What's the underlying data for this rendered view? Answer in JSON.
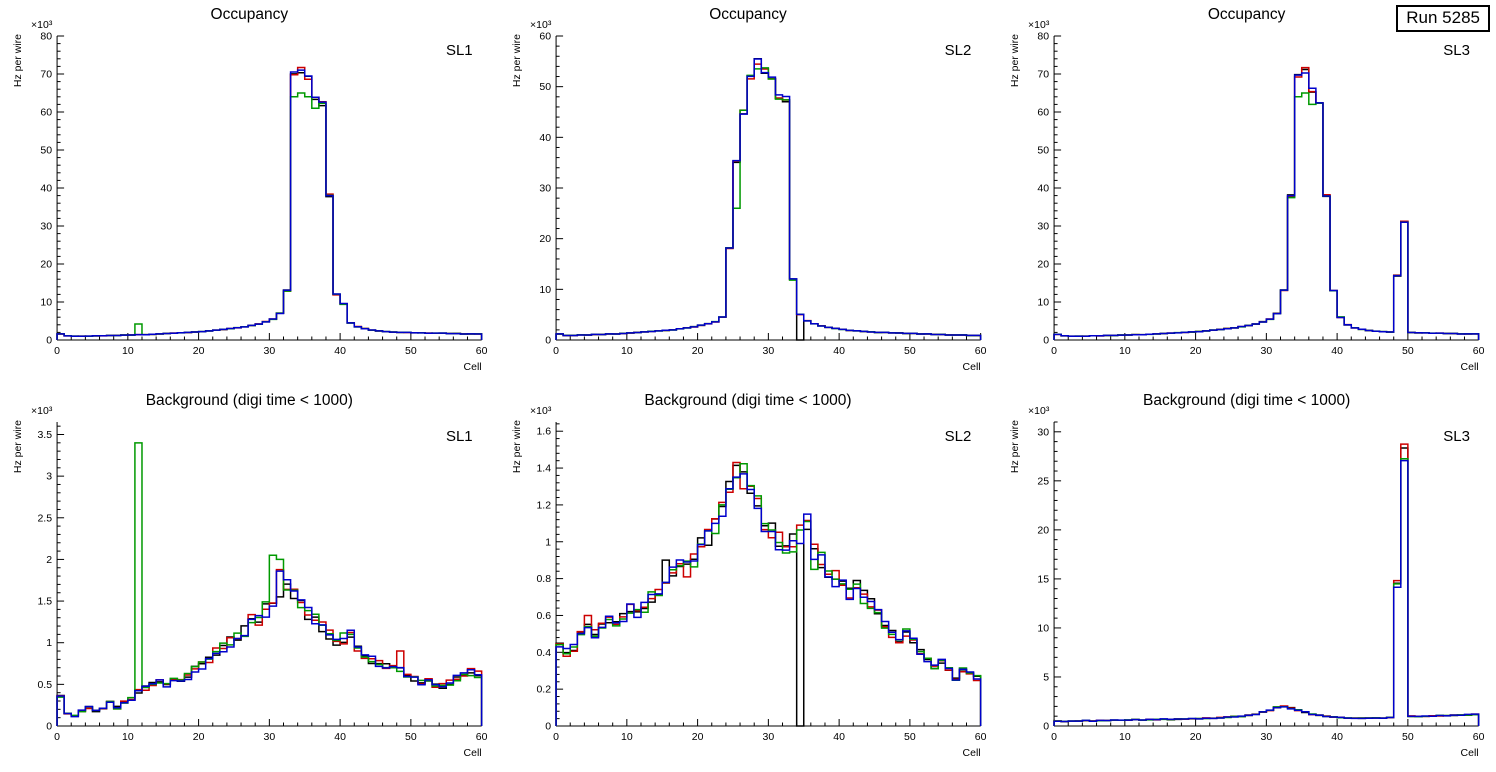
{
  "run_label": "Run 5285",
  "colors": {
    "frame": "#000000",
    "background": "#ffffff"
  },
  "chart_data": [
    {
      "type": "line",
      "style": "histogram-step",
      "title": "Occupancy",
      "pad_label": "SL1",
      "xlabel": "Cell",
      "ylabel": "Hz per wire",
      "y_exponent": "×10³",
      "xlim": [
        0,
        60
      ],
      "ylim": [
        0,
        80
      ],
      "xticks": [
        0,
        10,
        20,
        30,
        40,
        50,
        60
      ],
      "yticks": [
        0,
        10,
        20,
        30,
        40,
        50,
        60,
        70,
        80
      ],
      "x_bins": {
        "start": 0,
        "width": 1,
        "count": 60
      },
      "values_base": [
        1.6,
        1.1,
        1.0,
        1.0,
        1.0,
        1.1,
        1.1,
        1.2,
        1.2,
        1.3,
        1.3,
        1.4,
        1.4,
        1.5,
        1.6,
        1.7,
        1.8,
        1.9,
        2.0,
        2.1,
        2.2,
        2.4,
        2.6,
        2.8,
        3.0,
        3.2,
        3.5,
        3.8,
        4.2,
        4.8,
        5.5,
        7.0,
        13.0,
        70.0,
        71.0,
        69.0,
        64.0,
        62.0,
        38.0,
        12.0,
        9.5,
        4.5,
        3.5,
        3.0,
        2.6,
        2.4,
        2.2,
        2.1,
        2.0,
        2.0,
        1.9,
        1.9,
        1.8,
        1.8,
        1.8,
        1.7,
        1.7,
        1.6,
        1.6,
        1.6
      ],
      "series": [
        {
          "name": "black",
          "color": "#000000",
          "seed": 11,
          "jitter": 0.012,
          "overrides": {}
        },
        {
          "name": "red",
          "color": "#cc0000",
          "seed": 12,
          "jitter": 0.012,
          "overrides": {}
        },
        {
          "name": "green",
          "color": "#009900",
          "seed": 13,
          "jitter": 0.015,
          "overrides": {
            "11": 4.2,
            "33": 64,
            "34": 65,
            "35": 64,
            "36": 61
          }
        },
        {
          "name": "blue",
          "color": "#0000cc",
          "seed": 14,
          "jitter": 0.012,
          "overrides": {}
        }
      ]
    },
    {
      "type": "line",
      "style": "histogram-step",
      "title": "Occupancy",
      "pad_label": "SL2",
      "xlabel": "Cell",
      "ylabel": "Hz per wire",
      "y_exponent": "×10³",
      "xlim": [
        0,
        60
      ],
      "ylim": [
        0,
        60
      ],
      "xticks": [
        0,
        10,
        20,
        30,
        40,
        50,
        60
      ],
      "yticks": [
        0,
        10,
        20,
        30,
        40,
        50,
        60
      ],
      "x_bins": {
        "start": 0,
        "width": 1,
        "count": 60
      },
      "values_base": [
        1.2,
        0.9,
        0.9,
        1.0,
        1.0,
        1.1,
        1.1,
        1.2,
        1.2,
        1.3,
        1.4,
        1.5,
        1.6,
        1.7,
        1.8,
        1.9,
        2.0,
        2.2,
        2.4,
        2.6,
        2.9,
        3.2,
        3.6,
        4.5,
        18.0,
        35.0,
        45.0,
        52.0,
        55.0,
        53.0,
        52.0,
        48.0,
        47.5,
        12.0,
        5.0,
        3.8,
        3.2,
        2.8,
        2.5,
        2.3,
        2.1,
        1.9,
        1.8,
        1.7,
        1.6,
        1.5,
        1.5,
        1.4,
        1.4,
        1.3,
        1.3,
        1.2,
        1.2,
        1.1,
        1.1,
        1.0,
        1.0,
        1.0,
        0.9,
        0.9
      ],
      "series": [
        {
          "name": "black",
          "color": "#000000",
          "seed": 21,
          "jitter": 0.012,
          "overrides": {
            "28": 55.5,
            "34": 0
          }
        },
        {
          "name": "red",
          "color": "#cc0000",
          "seed": 22,
          "jitter": 0.012,
          "overrides": {}
        },
        {
          "name": "green",
          "color": "#009900",
          "seed": 23,
          "jitter": 0.015,
          "overrides": {
            "25": 26,
            "28": 53.5
          }
        },
        {
          "name": "blue",
          "color": "#0000cc",
          "seed": 24,
          "jitter": 0.012,
          "overrides": {}
        }
      ]
    },
    {
      "type": "line",
      "style": "histogram-step",
      "title": "Occupancy",
      "pad_label": "SL3",
      "xlabel": "Cell",
      "ylabel": "Hz per wire",
      "y_exponent": "×10³",
      "xlim": [
        0,
        60
      ],
      "ylim": [
        0,
        80
      ],
      "xticks": [
        0,
        10,
        20,
        30,
        40,
        50,
        60
      ],
      "yticks": [
        0,
        10,
        20,
        30,
        40,
        50,
        60,
        70,
        80
      ],
      "x_bins": {
        "start": 0,
        "width": 1,
        "count": 60
      },
      "values_base": [
        1.5,
        1.1,
        1.0,
        1.0,
        1.0,
        1.1,
        1.1,
        1.2,
        1.2,
        1.3,
        1.3,
        1.4,
        1.4,
        1.5,
        1.6,
        1.7,
        1.8,
        1.9,
        2.0,
        2.1,
        2.2,
        2.4,
        2.6,
        2.8,
        3.0,
        3.2,
        3.5,
        3.8,
        4.2,
        4.8,
        5.5,
        7.0,
        13.0,
        38.0,
        70.0,
        71.0,
        66.0,
        63.0,
        38.0,
        13.0,
        6.0,
        4.0,
        3.2,
        2.8,
        2.5,
        2.3,
        2.2,
        2.1,
        17.0,
        31.0,
        2.0,
        1.9,
        1.9,
        1.8,
        1.8,
        1.7,
        1.7,
        1.6,
        1.6,
        1.6
      ],
      "series": [
        {
          "name": "black",
          "color": "#000000",
          "seed": 31,
          "jitter": 0.012,
          "overrides": {}
        },
        {
          "name": "red",
          "color": "#cc0000",
          "seed": 32,
          "jitter": 0.012,
          "overrides": {}
        },
        {
          "name": "green",
          "color": "#009900",
          "seed": 33,
          "jitter": 0.015,
          "overrides": {
            "34": 64,
            "35": 65,
            "36": 62
          }
        },
        {
          "name": "blue",
          "color": "#0000cc",
          "seed": 34,
          "jitter": 0.012,
          "overrides": {}
        }
      ]
    },
    {
      "type": "line",
      "style": "histogram-step",
      "title": "Background (digi time < 1000)",
      "pad_label": "SL1",
      "xlabel": "Cell",
      "ylabel": "Hz per wire",
      "y_exponent": "×10³",
      "xlim": [
        0,
        60
      ],
      "ylim": [
        0,
        3.65
      ],
      "xticks": [
        0,
        10,
        20,
        30,
        40,
        50,
        60
      ],
      "yticks": [
        0,
        0.5,
        1,
        1.5,
        2,
        2.5,
        3,
        3.5
      ],
      "x_bins": {
        "start": 0,
        "width": 1,
        "count": 60
      },
      "values_base": [
        0.35,
        0.15,
        0.12,
        0.18,
        0.22,
        0.18,
        0.22,
        0.28,
        0.22,
        0.28,
        0.32,
        0.42,
        0.45,
        0.5,
        0.52,
        0.5,
        0.58,
        0.55,
        0.6,
        0.68,
        0.72,
        0.78,
        0.88,
        0.95,
        1.0,
        1.05,
        1.15,
        1.25,
        1.3,
        1.4,
        1.5,
        1.9,
        1.75,
        1.6,
        1.5,
        1.35,
        1.3,
        1.2,
        1.1,
        1.0,
        1.05,
        1.1,
        0.9,
        0.85,
        0.8,
        0.75,
        0.72,
        0.7,
        0.66,
        0.6,
        0.56,
        0.52,
        0.55,
        0.5,
        0.48,
        0.52,
        0.58,
        0.62,
        0.65,
        0.62
      ],
      "series": [
        {
          "name": "black",
          "color": "#000000",
          "seed": 41,
          "jitter": 0.07,
          "overrides": {
            "31": 1.55
          }
        },
        {
          "name": "red",
          "color": "#cc0000",
          "seed": 42,
          "jitter": 0.07,
          "overrides": {
            "48": 0.9
          }
        },
        {
          "name": "green",
          "color": "#009900",
          "seed": 43,
          "jitter": 0.07,
          "overrides": {
            "11": 3.4,
            "30": 2.05,
            "31": 2.0
          }
        },
        {
          "name": "blue",
          "color": "#0000cc",
          "seed": 44,
          "jitter": 0.07,
          "overrides": {
            "41": 1.15
          }
        }
      ]
    },
    {
      "type": "line",
      "style": "histogram-step",
      "title": "Background (digi time < 1000)",
      "pad_label": "SL2",
      "xlabel": "Cell",
      "ylabel": "Hz per wire",
      "y_exponent": "×10³",
      "xlim": [
        0,
        60
      ],
      "ylim": [
        0,
        1.65
      ],
      "yticks": [
        0,
        0.2,
        0.4,
        0.6,
        0.8,
        1,
        1.2,
        1.4,
        1.6
      ],
      "xticks": [
        0,
        10,
        20,
        30,
        40,
        50,
        60
      ],
      "x_bins": {
        "start": 0,
        "width": 1,
        "count": 60
      },
      "values_base": [
        0.45,
        0.4,
        0.42,
        0.5,
        0.55,
        0.5,
        0.54,
        0.58,
        0.54,
        0.58,
        0.63,
        0.6,
        0.64,
        0.7,
        0.74,
        0.8,
        0.84,
        0.88,
        0.85,
        0.9,
        0.98,
        1.02,
        1.08,
        1.18,
        1.3,
        1.4,
        1.35,
        1.28,
        1.22,
        1.1,
        1.05,
        1.0,
        0.96,
        1.0,
        1.04,
        1.08,
        0.95,
        0.9,
        0.85,
        0.8,
        0.76,
        0.72,
        0.76,
        0.7,
        0.66,
        0.6,
        0.56,
        0.5,
        0.46,
        0.5,
        0.46,
        0.4,
        0.36,
        0.32,
        0.36,
        0.3,
        0.26,
        0.3,
        0.28,
        0.26
      ],
      "series": [
        {
          "name": "black",
          "color": "#000000",
          "seed": 51,
          "jitter": 0.055,
          "overrides": {
            "15": 0.9,
            "34": 0
          }
        },
        {
          "name": "red",
          "color": "#cc0000",
          "seed": 52,
          "jitter": 0.055,
          "overrides": {
            "4": 0.6,
            "25": 1.43
          }
        },
        {
          "name": "green",
          "color": "#009900",
          "seed": 53,
          "jitter": 0.055,
          "overrides": {
            "36": 0.85
          }
        },
        {
          "name": "blue",
          "color": "#0000cc",
          "seed": 54,
          "jitter": 0.055,
          "overrides": {
            "35": 1.15
          }
        }
      ]
    },
    {
      "type": "line",
      "style": "histogram-step",
      "title": "Background (digi time < 1000)",
      "pad_label": "SL3",
      "xlabel": "Cell",
      "ylabel": "Hz per wire",
      "y_exponent": "×10³",
      "xlim": [
        0,
        60
      ],
      "ylim": [
        0,
        31
      ],
      "xticks": [
        0,
        10,
        20,
        30,
        40,
        50,
        60
      ],
      "yticks": [
        0,
        5,
        10,
        15,
        20,
        25,
        30
      ],
      "x_bins": {
        "start": 0,
        "width": 1,
        "count": 60
      },
      "values_base": [
        0.5,
        0.45,
        0.5,
        0.5,
        0.55,
        0.5,
        0.55,
        0.55,
        0.6,
        0.6,
        0.6,
        0.65,
        0.6,
        0.65,
        0.65,
        0.7,
        0.65,
        0.7,
        0.7,
        0.75,
        0.75,
        0.8,
        0.8,
        0.85,
        0.9,
        0.95,
        1.0,
        1.1,
        1.2,
        1.4,
        1.6,
        1.9,
        2.0,
        1.8,
        1.6,
        1.4,
        1.2,
        1.1,
        1.0,
        0.9,
        0.85,
        0.8,
        0.8,
        0.8,
        0.8,
        0.8,
        0.8,
        0.85,
        14.5,
        28.0,
        1.0,
        1.0,
        1.0,
        1.0,
        1.05,
        1.05,
        1.1,
        1.1,
        1.15,
        1.2
      ],
      "series": [
        {
          "name": "black",
          "color": "#000000",
          "seed": 61,
          "jitter": 0.04,
          "overrides": {}
        },
        {
          "name": "red",
          "color": "#cc0000",
          "seed": 62,
          "jitter": 0.04,
          "overrides": {}
        },
        {
          "name": "green",
          "color": "#009900",
          "seed": 63,
          "jitter": 0.04,
          "overrides": {}
        },
        {
          "name": "blue",
          "color": "#0000cc",
          "seed": 64,
          "jitter": 0.04,
          "overrides": {}
        }
      ]
    }
  ]
}
